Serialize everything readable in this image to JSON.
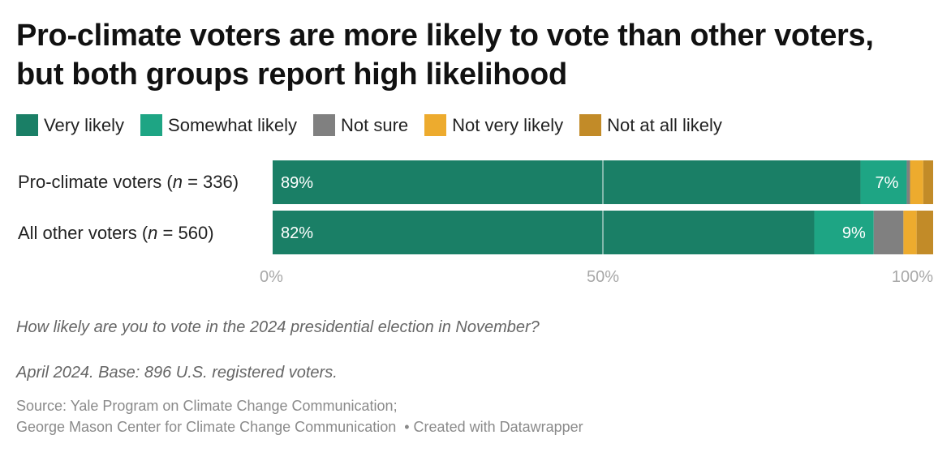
{
  "title": "Pro-climate voters are more likely to vote than other voters, but both groups report high likelihood",
  "legend": [
    {
      "label": "Very likely",
      "color": "#1a7f66"
    },
    {
      "label": "Somewhat likely",
      "color": "#1ea584"
    },
    {
      "label": "Not sure",
      "color": "#808080"
    },
    {
      "label": "Not very likely",
      "color": "#edab2e"
    },
    {
      "label": "Not at all likely",
      "color": "#c28b28"
    }
  ],
  "rows": [
    {
      "label_prefix": "Pro-climate voters (",
      "label_n": "n",
      "label_suffix": " = 336)"
    },
    {
      "label_prefix": "All other voters (",
      "label_n": "n",
      "label_suffix": " = 560)"
    }
  ],
  "chart_data": {
    "type": "bar",
    "orientation": "horizontal",
    "stacked": true,
    "title": "Pro-climate voters are more likely to vote than other voters, but both groups report high likelihood",
    "categories": [
      "Pro-climate voters (n = 336)",
      "All other voters (n = 560)"
    ],
    "series": [
      {
        "name": "Very likely",
        "color": "#1a7f66",
        "values": [
          89,
          82
        ],
        "labels": [
          "89%",
          "82%"
        ]
      },
      {
        "name": "Somewhat likely",
        "color": "#1ea584",
        "values": [
          7,
          9
        ],
        "labels": [
          "7%",
          "9%"
        ]
      },
      {
        "name": "Not sure",
        "color": "#808080",
        "values": [
          0.5,
          4.5
        ],
        "labels": [
          "",
          ""
        ]
      },
      {
        "name": "Not very likely",
        "color": "#edab2e",
        "values": [
          2,
          2
        ],
        "labels": [
          "",
          ""
        ]
      },
      {
        "name": "Not at all likely",
        "color": "#c28b28",
        "values": [
          1.5,
          2.5
        ],
        "labels": [
          "",
          ""
        ]
      }
    ],
    "xlim": [
      0,
      100
    ],
    "xticks": [
      0,
      50,
      100
    ],
    "xtick_labels": [
      "0%",
      "50%",
      "100%"
    ],
    "gridline_at": 50,
    "legend_position": "top-left",
    "xlabel": "",
    "ylabel": ""
  },
  "footer": {
    "question": "How likely are you to vote in the 2024 presidential election in November?",
    "base": "April 2024. Base: 896 U.S. registered voters.",
    "source_line1": "Source: Yale Program on Climate Change Communication;",
    "source_line2": "George Mason Center for Climate Change Communication",
    "credit": "• Created with Datawrapper"
  }
}
